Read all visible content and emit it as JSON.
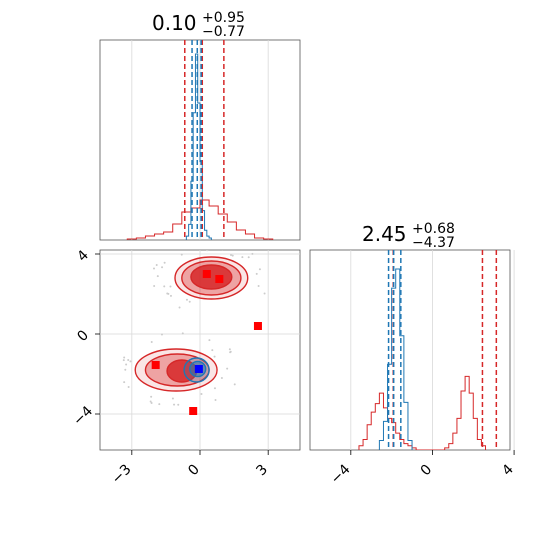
{
  "chart_data": [
    {
      "type": "histogram",
      "panel": "top-left",
      "title": {
        "main": "0.10",
        "plus": "+0.95",
        "minus": "−0.77"
      },
      "x_range": [
        -4.4,
        4.4
      ],
      "red_hist": {
        "bin_edges": [
          -3.2,
          -2.8,
          -2.4,
          -2.0,
          -1.6,
          -1.2,
          -0.8,
          -0.4,
          0.0,
          0.4,
          0.8,
          1.2,
          1.6,
          2.0,
          2.4,
          2.8,
          3.2
        ],
        "heights": [
          0.005,
          0.01,
          0.02,
          0.03,
          0.04,
          0.08,
          0.14,
          0.16,
          0.2,
          0.17,
          0.13,
          0.09,
          0.05,
          0.03,
          0.01,
          0.005
        ]
      },
      "blue_hist": {
        "bin_edges": [
          -0.6,
          -0.5,
          -0.4,
          -0.3,
          -0.2,
          -0.1,
          0.0,
          0.1,
          0.2,
          0.3,
          0.4,
          0.5
        ],
        "heights": [
          0.02,
          0.08,
          0.3,
          0.65,
          0.95,
          0.7,
          0.4,
          0.15,
          0.05,
          0.02,
          0.01
        ]
      },
      "red_quantiles": [
        -0.67,
        0.1,
        1.05
      ],
      "blue_quantiles": [
        -0.35,
        -0.12,
        0.05
      ],
      "colors": {
        "red": "#d62728",
        "blue": "#1f77b4"
      }
    },
    {
      "type": "histogram",
      "panel": "bottom-right",
      "title": {
        "main": "2.45",
        "plus": "+0.68",
        "minus": "−4.37"
      },
      "x_range": [
        -6.0,
        3.8
      ],
      "xticks": [
        -4,
        0,
        4
      ],
      "xtick_labels": [
        "−4",
        "0",
        "4"
      ],
      "red_hist": {
        "bin_edges": [
          -3.6,
          -3.4,
          -3.2,
          -3.0,
          -2.8,
          -2.6,
          -2.4,
          -2.2,
          -2.0,
          -1.8,
          -1.6,
          -1.4,
          -1.2,
          -1.0,
          -0.8,
          0.6,
          0.8,
          1.0,
          1.2,
          1.4,
          1.6,
          1.8,
          2.0,
          2.2,
          2.4,
          2.6
        ],
        "heights": [
          0.02,
          0.05,
          0.12,
          0.18,
          0.22,
          0.27,
          0.2,
          0.15,
          0.13,
          0.08,
          0.05,
          0.03,
          0.02,
          0.01,
          0.0,
          0.01,
          0.03,
          0.08,
          0.15,
          0.28,
          0.35,
          0.27,
          0.15,
          0.05,
          0.02
        ]
      },
      "blue_hist": {
        "bin_edges": [
          -2.6,
          -2.4,
          -2.2,
          -2.0,
          -1.8,
          -1.6,
          -1.4,
          -1.2,
          -1.0
        ],
        "heights": [
          0.05,
          0.15,
          0.45,
          0.85,
          0.95,
          0.6,
          0.25,
          0.05
        ]
      },
      "red_quantiles": [
        -1.92,
        2.45,
        3.13
      ],
      "blue_quantiles": [
        -2.15,
        -1.9,
        -1.55
      ],
      "colors": {
        "red": "#d62728",
        "blue": "#1f77b4"
      }
    },
    {
      "type": "scatter",
      "panel": "bottom-left",
      "x_range": [
        -4.4,
        4.4
      ],
      "y_range": [
        -5.8,
        4.2
      ],
      "xticks": [
        -3,
        0,
        3
      ],
      "xtick_labels": [
        "−3",
        "0",
        "3"
      ],
      "yticks": [
        -4,
        0,
        4
      ],
      "ytick_labels": [
        "−4",
        "0",
        "4"
      ],
      "red_contours": [
        {
          "cx": 0.5,
          "cy": 2.8,
          "rx": 1.6,
          "ry": 1.05
        },
        {
          "cx": 0.5,
          "cy": 2.8,
          "rx": 1.3,
          "ry": 0.85
        },
        {
          "cx": 0.5,
          "cy": 2.85,
          "rx": 0.9,
          "ry": 0.6
        },
        {
          "cx": -1.05,
          "cy": -1.8,
          "rx": 1.8,
          "ry": 1.05
        },
        {
          "cx": -1.0,
          "cy": -1.8,
          "rx": 1.4,
          "ry": 0.8
        },
        {
          "cx": -0.8,
          "cy": -1.85,
          "rx": 0.65,
          "ry": 0.55
        }
      ],
      "blue_contours": [
        {
          "cx": -0.15,
          "cy": -1.8,
          "rx": 0.55,
          "ry": 0.6
        },
        {
          "cx": -0.1,
          "cy": -1.75,
          "rx": 0.35,
          "ry": 0.38
        }
      ],
      "red_markers": [
        [
          0.3,
          3.0
        ],
        [
          0.85,
          2.75
        ],
        [
          2.55,
          0.4
        ],
        [
          -1.95,
          -1.55
        ],
        [
          -0.3,
          -3.85
        ]
      ],
      "blue_markers": [
        [
          -0.05,
          -1.75
        ]
      ],
      "colors": {
        "red": "#d62728",
        "blue": "#1f77b4",
        "blue_marker": "#0000ff"
      }
    }
  ]
}
